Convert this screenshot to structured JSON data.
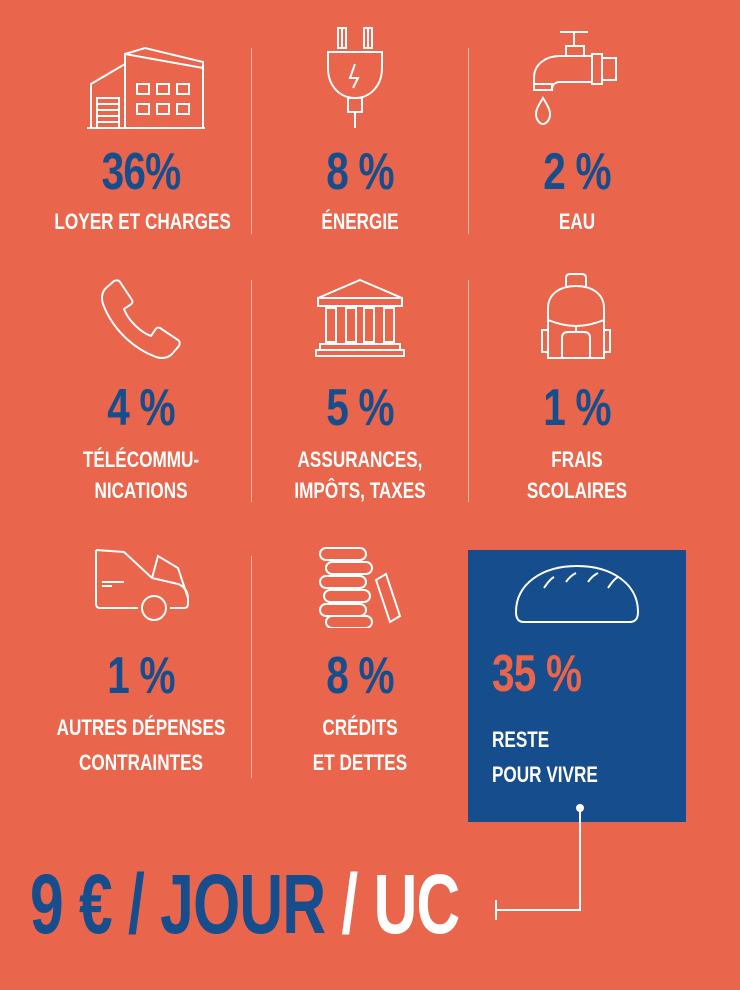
{
  "items": [
    {
      "icon": "house-icon",
      "percent": "36%",
      "label_line1": "LOYER ET CHARGES",
      "label_line2": ""
    },
    {
      "icon": "plug-icon",
      "percent": "8 %",
      "label_line1": "ÉNERGIE",
      "label_line2": ""
    },
    {
      "icon": "faucet-icon",
      "percent": "2 %",
      "label_line1": "EAU",
      "label_line2": ""
    },
    {
      "icon": "phone-icon",
      "percent": "4 %",
      "label_line1": "TÉLÉCOMMU-",
      "label_line2": "NICATIONS"
    },
    {
      "icon": "bank-building-icon",
      "percent": "5 %",
      "label_line1": "ASSURANCES,",
      "label_line2": "IMPÔTS, TAXES"
    },
    {
      "icon": "backpack-icon",
      "percent": "1 %",
      "label_line1": "FRAIS",
      "label_line2": "SCOLAIRES"
    },
    {
      "icon": "car-icon",
      "percent": "1 %",
      "label_line1": "AUTRES DÉPENSES",
      "label_line2": "CONTRAINTES"
    },
    {
      "icon": "coin-stack-icon",
      "percent": "8 %",
      "label_line1": "CRÉDITS",
      "label_line2": "ET DETTES"
    }
  ],
  "highlight": {
    "icon": "bread-icon",
    "percent": "35 %",
    "label_line1": "RESTE",
    "label_line2": "POUR VIVRE"
  },
  "summary": {
    "part1": "9 € / JOUR ",
    "part2": "/ UC"
  },
  "colors": {
    "background": "#e9654b",
    "accent": "#164d8d",
    "text": "#ffffff"
  }
}
